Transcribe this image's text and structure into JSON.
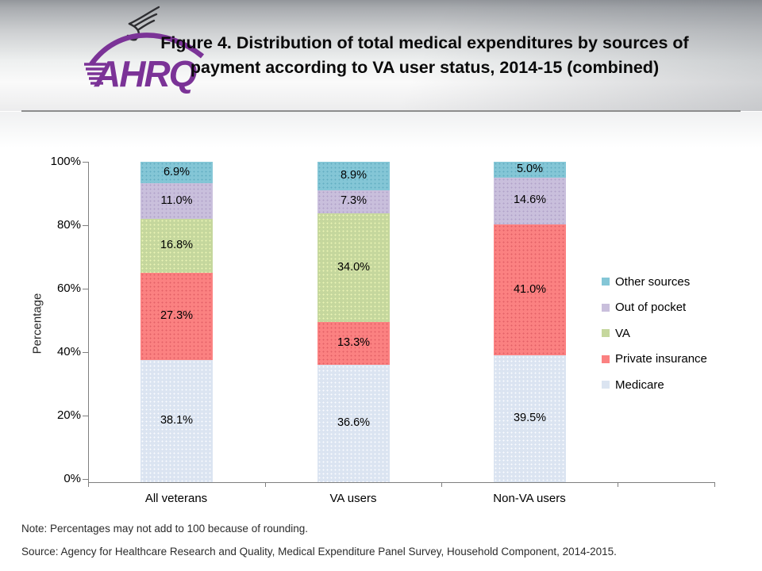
{
  "header": {
    "logo_text": "AHRQ",
    "title_line1": "Figure 4. Distribution of total medical expenditures by sources of",
    "title_line2": "payment according to VA user status, 2014-15 (combined)"
  },
  "chart_data": {
    "type": "bar",
    "stacked": true,
    "title": "Figure 4. Distribution of total medical expenditures by sources of payment according to VA user status, 2014-15 (combined)",
    "xlabel": "",
    "ylabel": "Percentage",
    "ylim": [
      0,
      100
    ],
    "y_ticks": [
      "100%",
      "80%",
      "60%",
      "40%",
      "20%",
      "0%"
    ],
    "grid": false,
    "legend_position": "right",
    "categories": [
      "All veterans",
      "VA users",
      "Non-VA users"
    ],
    "series": [
      {
        "name": "Medicare",
        "color": "#dbe4f1",
        "dot_color": "rgba(255,255,255,0.9)",
        "values": [
          38.1,
          36.6,
          39.5
        ]
      },
      {
        "name": "Private insurance",
        "color": "#fb8181",
        "dot_color": "rgba(198,58,72,0.45)",
        "values": [
          27.3,
          13.3,
          41.0
        ]
      },
      {
        "name": "VA",
        "color": "#c5d79d",
        "dot_color": "rgba(238,246,182,0.95)",
        "values": [
          16.8,
          34.0,
          0
        ]
      },
      {
        "name": "Out of pocket",
        "color": "#c9bfdc",
        "dot_color": "rgba(148,128,178,0.45)",
        "values": [
          11.0,
          7.3,
          14.6
        ]
      },
      {
        "name": "Other sources",
        "color": "#84c6d6",
        "dot_color": "rgba(38,128,158,0.35)",
        "values": [
          6.9,
          8.9,
          5.0
        ]
      }
    ],
    "label_suffix": "%"
  },
  "footer": {
    "note": "Note: Percentages may not add to 100 because of rounding.",
    "source": "Source: Agency for Healthcare Research and Quality, Medical Expenditure Panel Survey, Household Component, 2014-2015."
  }
}
